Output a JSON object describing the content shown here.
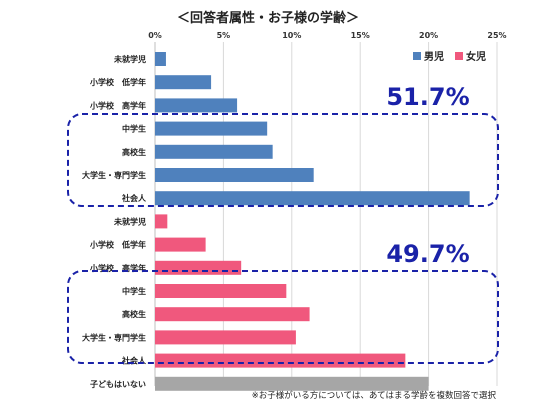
{
  "chart_data": {
    "type": "bar",
    "orientation": "horizontal",
    "title": "＜回答者属性・お子様の学齢＞",
    "xlim": [
      0,
      25
    ],
    "x_ticks": [
      "0%",
      "5%",
      "10%",
      "15%",
      "20%",
      "25%"
    ],
    "grid": true,
    "legend_position": "top-right",
    "colors": {
      "boys": "#4f81bd",
      "girls": "#f0587d",
      "none": "#a6a6a6"
    },
    "series": [
      {
        "name": "男児",
        "categories": [
          "未就学児",
          "小学校　低学年",
          "小学校　高学年",
          "中学生",
          "高校生",
          "大学生・専門学生",
          "社会人"
        ],
        "values": [
          0.8,
          4.1,
          6.0,
          8.2,
          8.6,
          11.6,
          23.0
        ]
      },
      {
        "name": "女児",
        "categories": [
          "未就学児",
          "小学校　低学年",
          "小学校　高学年",
          "中学生",
          "高校生",
          "大学生・専門学生",
          "社会人"
        ],
        "values": [
          0.9,
          3.7,
          6.3,
          9.6,
          11.3,
          10.3,
          18.3
        ]
      },
      {
        "name": "",
        "categories": [
          "子どもはいない"
        ],
        "values": [
          20.0
        ]
      }
    ],
    "annotations": {
      "boys_highlight": "51.7%",
      "girls_highlight": "49.7%"
    },
    "footnote": "※お子様がいる方については、あてはまる学齢を複数回答で選択"
  }
}
